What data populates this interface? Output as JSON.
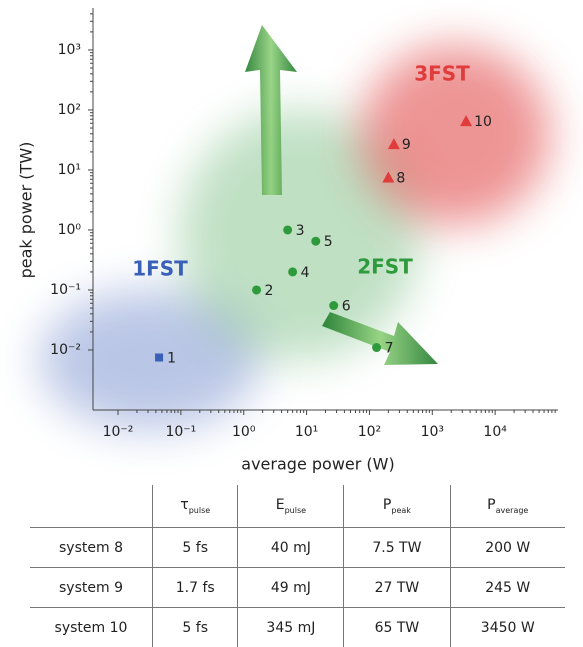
{
  "chart_data": {
    "type": "scatter",
    "xlabel": "average power (W)",
    "ylabel": "peak power (TW)",
    "xscale": "log",
    "yscale": "log",
    "xlim": [
      0.004,
      100000
    ],
    "ylim": [
      0.001,
      5000
    ],
    "xticks": [
      {
        "value": 0.01,
        "label": "10⁻²"
      },
      {
        "value": 0.1,
        "label": "10⁻¹"
      },
      {
        "value": 1,
        "label": "10⁰"
      },
      {
        "value": 10,
        "label": "10¹"
      },
      {
        "value": 100,
        "label": "10²"
      },
      {
        "value": 1000,
        "label": "10³"
      },
      {
        "value": 10000,
        "label": "10⁴"
      }
    ],
    "yticks": [
      {
        "value": 0.01,
        "label": "10⁻²"
      },
      {
        "value": 0.1,
        "label": "10⁻¹"
      },
      {
        "value": 1,
        "label": "10⁰"
      },
      {
        "value": 10,
        "label": "10¹"
      },
      {
        "value": 100,
        "label": "10²"
      },
      {
        "value": 1000,
        "label": "10³"
      }
    ],
    "series": [
      {
        "name": "1FST",
        "color": "#3a5fb8",
        "marker": "square",
        "x": [
          0.045
        ],
        "values": [
          0.0075
        ],
        "point_labels": [
          "1"
        ]
      },
      {
        "name": "2FST",
        "color": "#2e9a3c",
        "marker": "circle",
        "x": [
          1.6,
          5,
          6,
          14,
          27,
          130
        ],
        "values": [
          0.1,
          1,
          0.2,
          0.65,
          0.055,
          0.011
        ],
        "point_labels": [
          "2",
          "3",
          "4",
          "5",
          "6",
          "7"
        ]
      },
      {
        "name": "3FST",
        "color": "#e03c3c",
        "marker": "triangle",
        "x": [
          200,
          245,
          3450
        ],
        "values": [
          7.5,
          27,
          65
        ],
        "point_labels": [
          "8",
          "9",
          "10"
        ]
      }
    ]
  },
  "table": {
    "header": [
      {
        "symbol": "τ",
        "sub": "pulse"
      },
      {
        "symbol": "E",
        "sub": "pulse"
      },
      {
        "symbol": "P",
        "sub": "peak"
      },
      {
        "symbol": "P",
        "sub": "average"
      }
    ],
    "rows": [
      [
        "system 8",
        "5 fs",
        "40 mJ",
        "7.5 TW",
        "200 W"
      ],
      [
        "system 9",
        "1.7 fs",
        "49 mJ",
        "27 TW",
        "245 W"
      ],
      [
        "system 10",
        "5 fs",
        "345 mJ",
        "65 TW",
        "3450 W"
      ]
    ]
  }
}
